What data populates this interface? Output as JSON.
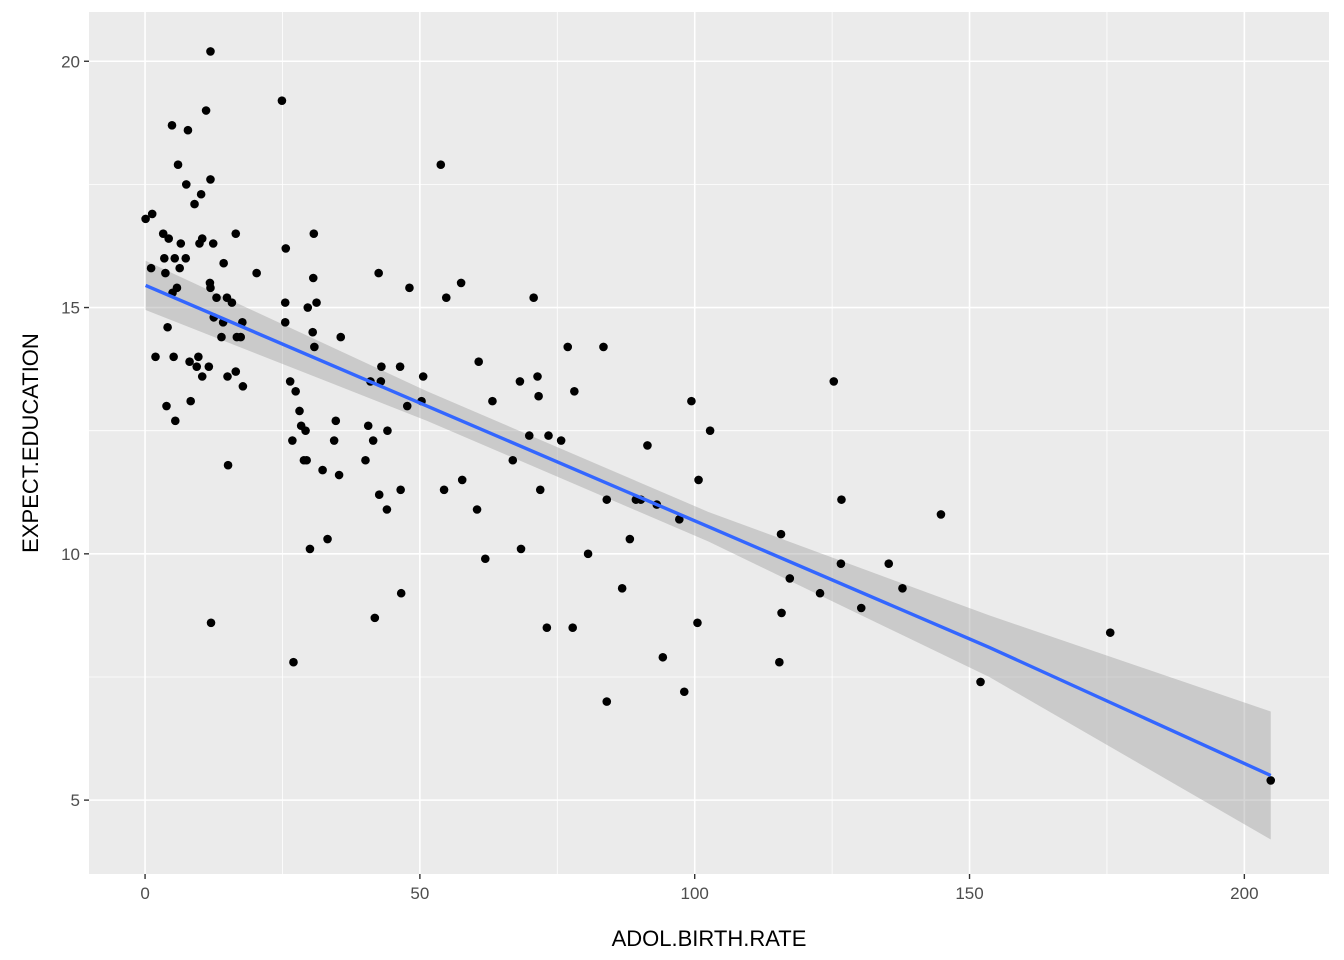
{
  "chart_data": {
    "type": "scatter",
    "title": "",
    "xlabel": "ADOL.BIRTH.RATE",
    "ylabel": "EXPECT.EDUCATION",
    "xlim": [
      -10.2,
      215.4
    ],
    "ylim": [
      3.5,
      21.0
    ],
    "x_ticks": [
      0,
      50,
      100,
      150,
      200
    ],
    "y_ticks": [
      5,
      10,
      15,
      20
    ],
    "x_tick_labels": [
      "0",
      "50",
      "100",
      "150",
      "200"
    ],
    "y_tick_labels": [
      "5",
      "10",
      "15",
      "20"
    ],
    "grid": true,
    "legend": "none",
    "colors": {
      "panel_background": "#ebebeb",
      "grid_major": "#ffffff",
      "points": "#000000",
      "fit_line": "#3366ff",
      "confidence_band": "#999999",
      "tick_label": "#4d4d4d"
    },
    "points": [
      [
        0.1,
        16.8
      ],
      [
        1.3,
        16.9
      ],
      [
        1.1,
        15.8
      ],
      [
        1.9,
        14.0
      ],
      [
        3.3,
        16.5
      ],
      [
        3.5,
        16.0
      ],
      [
        3.7,
        15.7
      ],
      [
        3.9,
        13.0
      ],
      [
        4.1,
        14.6
      ],
      [
        4.3,
        16.4
      ],
      [
        4.9,
        18.7
      ],
      [
        5.0,
        15.3
      ],
      [
        5.2,
        14.0
      ],
      [
        5.4,
        16.0
      ],
      [
        5.5,
        12.7
      ],
      [
        5.8,
        15.4
      ],
      [
        6.0,
        17.9
      ],
      [
        6.3,
        15.8
      ],
      [
        6.5,
        16.3
      ],
      [
        7.4,
        16.0
      ],
      [
        7.5,
        17.5
      ],
      [
        7.8,
        18.6
      ],
      [
        8.1,
        13.9
      ],
      [
        8.3,
        13.1
      ],
      [
        9.0,
        17.1
      ],
      [
        9.4,
        13.8
      ],
      [
        9.7,
        14.0
      ],
      [
        9.9,
        16.3
      ],
      [
        10.2,
        17.3
      ],
      [
        10.4,
        16.4
      ],
      [
        10.4,
        13.6
      ],
      [
        11.1,
        19.0
      ],
      [
        11.6,
        13.8
      ],
      [
        11.8,
        15.5
      ],
      [
        11.9,
        15.4
      ],
      [
        11.9,
        17.6
      ],
      [
        11.9,
        20.2
      ],
      [
        12.0,
        8.6
      ],
      [
        12.4,
        16.3
      ],
      [
        12.5,
        14.8
      ],
      [
        13.0,
        15.2
      ],
      [
        13.9,
        14.4
      ],
      [
        14.2,
        14.7
      ],
      [
        14.3,
        15.9
      ],
      [
        14.9,
        15.2
      ],
      [
        15.0,
        13.6
      ],
      [
        15.1,
        11.8
      ],
      [
        15.8,
        15.1
      ],
      [
        16.5,
        16.5
      ],
      [
        16.5,
        13.7
      ],
      [
        16.7,
        14.4
      ],
      [
        17.4,
        14.4
      ],
      [
        17.7,
        14.7
      ],
      [
        17.8,
        13.4
      ],
      [
        20.3,
        15.7
      ],
      [
        24.9,
        19.2
      ],
      [
        25.5,
        15.1
      ],
      [
        25.5,
        14.7
      ],
      [
        25.6,
        16.2
      ],
      [
        26.4,
        13.5
      ],
      [
        26.8,
        12.3
      ],
      [
        27.0,
        7.8
      ],
      [
        27.4,
        13.3
      ],
      [
        28.1,
        12.9
      ],
      [
        28.4,
        12.6
      ],
      [
        28.9,
        11.9
      ],
      [
        29.2,
        12.5
      ],
      [
        29.4,
        11.9
      ],
      [
        29.6,
        15.0
      ],
      [
        30.0,
        10.1
      ],
      [
        30.5,
        14.5
      ],
      [
        30.6,
        15.6
      ],
      [
        30.7,
        16.5
      ],
      [
        30.8,
        14.2
      ],
      [
        31.2,
        15.1
      ],
      [
        32.3,
        11.7
      ],
      [
        33.2,
        10.3
      ],
      [
        34.4,
        12.3
      ],
      [
        34.7,
        12.7
      ],
      [
        35.3,
        11.6
      ],
      [
        35.6,
        14.4
      ],
      [
        40.1,
        11.9
      ],
      [
        40.6,
        12.6
      ],
      [
        41.0,
        13.5
      ],
      [
        41.5,
        12.3
      ],
      [
        41.8,
        8.7
      ],
      [
        42.5,
        15.7
      ],
      [
        42.6,
        11.2
      ],
      [
        42.9,
        13.5
      ],
      [
        43.0,
        13.8
      ],
      [
        44.0,
        10.9
      ],
      [
        44.1,
        12.5
      ],
      [
        46.4,
        13.8
      ],
      [
        46.5,
        11.3
      ],
      [
        46.6,
        9.2
      ],
      [
        47.7,
        13.0
      ],
      [
        48.1,
        15.4
      ],
      [
        50.3,
        13.1
      ],
      [
        50.6,
        13.6
      ],
      [
        53.8,
        17.9
      ],
      [
        54.4,
        11.3
      ],
      [
        54.8,
        15.2
      ],
      [
        57.5,
        15.5
      ],
      [
        57.7,
        11.5
      ],
      [
        60.4,
        10.9
      ],
      [
        60.7,
        13.9
      ],
      [
        61.9,
        9.9
      ],
      [
        63.2,
        13.1
      ],
      [
        66.9,
        11.9
      ],
      [
        68.2,
        13.5
      ],
      [
        68.4,
        10.1
      ],
      [
        69.9,
        12.4
      ],
      [
        70.7,
        15.2
      ],
      [
        71.4,
        13.6
      ],
      [
        71.6,
        13.2
      ],
      [
        71.9,
        11.3
      ],
      [
        73.1,
        8.5
      ],
      [
        73.4,
        12.4
      ],
      [
        75.7,
        12.3
      ],
      [
        76.9,
        14.2
      ],
      [
        77.8,
        8.5
      ],
      [
        78.1,
        13.3
      ],
      [
        80.6,
        10.0
      ],
      [
        83.4,
        14.2
      ],
      [
        84.0,
        11.1
      ],
      [
        84.0,
        7.0
      ],
      [
        86.8,
        9.3
      ],
      [
        88.2,
        10.3
      ],
      [
        89.3,
        11.1
      ],
      [
        90.2,
        11.1
      ],
      [
        91.4,
        12.2
      ],
      [
        93.1,
        11.0
      ],
      [
        94.2,
        7.9
      ],
      [
        97.2,
        10.7
      ],
      [
        98.1,
        7.2
      ],
      [
        99.4,
        13.1
      ],
      [
        100.5,
        8.6
      ],
      [
        100.7,
        11.5
      ],
      [
        102.8,
        12.5
      ],
      [
        115.4,
        7.8
      ],
      [
        115.7,
        10.4
      ],
      [
        115.8,
        8.8
      ],
      [
        117.3,
        9.5
      ],
      [
        122.8,
        9.2
      ],
      [
        125.3,
        13.5
      ],
      [
        126.6,
        9.8
      ],
      [
        126.7,
        11.1
      ],
      [
        130.3,
        8.9
      ],
      [
        135.3,
        9.8
      ],
      [
        137.8,
        9.3
      ],
      [
        144.8,
        10.8
      ],
      [
        152.0,
        7.4
      ],
      [
        175.6,
        8.4
      ],
      [
        204.8,
        5.4
      ]
    ],
    "fit_line": [
      [
        0.1,
        15.45
      ],
      [
        51.3,
        13.0
      ],
      [
        102.5,
        10.55
      ],
      [
        153.6,
        8.1
      ],
      [
        204.8,
        5.5
      ]
    ],
    "confidence_band_upper": [
      [
        0.1,
        15.95
      ],
      [
        51.3,
        13.3
      ],
      [
        102.5,
        10.85
      ],
      [
        153.6,
        8.75
      ],
      [
        204.8,
        6.8
      ]
    ],
    "confidence_band_lower": [
      [
        0.1,
        14.95
      ],
      [
        51.3,
        12.7
      ],
      [
        102.5,
        10.25
      ],
      [
        153.6,
        7.5
      ],
      [
        204.8,
        4.2
      ]
    ]
  }
}
